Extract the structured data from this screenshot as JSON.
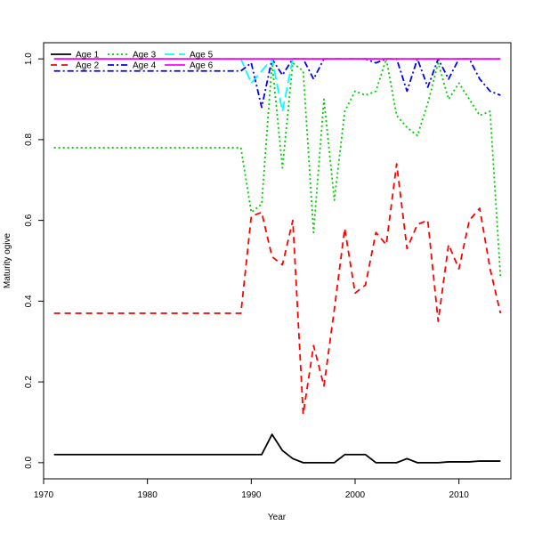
{
  "chart_data": {
    "type": "line",
    "xlabel": "Year",
    "ylabel": "Maturity ogive",
    "xlim": [
      1970,
      2015
    ],
    "ylim": [
      -0.04,
      1.04
    ],
    "x_ticks": [
      1970,
      1980,
      1990,
      2000,
      2010
    ],
    "y_ticks": [
      0.0,
      0.2,
      0.4,
      0.6,
      0.8,
      1.0
    ],
    "x_tick_labels": [
      "1970",
      "1980",
      "1990",
      "2000",
      "2010"
    ],
    "y_tick_labels": [
      "0.0",
      "0.2",
      "0.4",
      "0.6",
      "0.8",
      "1.0"
    ],
    "grid": false,
    "legend_position": "top-left",
    "x": [
      1971,
      1972,
      1973,
      1974,
      1975,
      1976,
      1977,
      1978,
      1979,
      1980,
      1981,
      1982,
      1983,
      1984,
      1985,
      1986,
      1987,
      1988,
      1989,
      1990,
      1991,
      1992,
      1993,
      1994,
      1995,
      1996,
      1997,
      1998,
      1999,
      2000,
      2001,
      2002,
      2003,
      2004,
      2005,
      2006,
      2007,
      2008,
      2009,
      2010,
      2011,
      2012,
      2013,
      2014
    ],
    "series": [
      {
        "name": "Age 1",
        "color": "#000000",
        "dash": "solid",
        "values": [
          0.02,
          0.02,
          0.02,
          0.02,
          0.02,
          0.02,
          0.02,
          0.02,
          0.02,
          0.02,
          0.02,
          0.02,
          0.02,
          0.02,
          0.02,
          0.02,
          0.02,
          0.02,
          0.02,
          0.02,
          0.02,
          0.07,
          0.03,
          0.01,
          0.0,
          0.0,
          0.0,
          0.0,
          0.02,
          0.02,
          0.02,
          0.0,
          0.0,
          0.0,
          0.01,
          0.0,
          0.0,
          0.0,
          0.002,
          0.002,
          0.002,
          0.004,
          0.004,
          0.004
        ]
      },
      {
        "name": "Age 2",
        "color": "#ff0000",
        "dash": "dashed",
        "values": [
          0.37,
          0.37,
          0.37,
          0.37,
          0.37,
          0.37,
          0.37,
          0.37,
          0.37,
          0.37,
          0.37,
          0.37,
          0.37,
          0.37,
          0.37,
          0.37,
          0.37,
          0.37,
          0.37,
          0.61,
          0.62,
          0.51,
          0.49,
          0.6,
          0.12,
          0.29,
          0.19,
          0.38,
          0.58,
          0.42,
          0.44,
          0.57,
          0.54,
          0.74,
          0.53,
          0.59,
          0.6,
          0.35,
          0.54,
          0.48,
          0.6,
          0.63,
          0.48,
          0.37
        ]
      },
      {
        "name": "Age 3",
        "color": "#00cd00",
        "dash": "dotted",
        "values": [
          0.78,
          0.78,
          0.78,
          0.78,
          0.78,
          0.78,
          0.78,
          0.78,
          0.78,
          0.78,
          0.78,
          0.78,
          0.78,
          0.78,
          0.78,
          0.78,
          0.78,
          0.78,
          0.78,
          0.62,
          0.64,
          0.99,
          0.73,
          0.99,
          0.97,
          0.57,
          0.9,
          0.65,
          0.87,
          0.92,
          0.91,
          0.92,
          1.0,
          0.86,
          0.83,
          0.81,
          0.89,
          0.99,
          0.9,
          0.94,
          0.9,
          0.86,
          0.87,
          0.46
        ]
      },
      {
        "name": "Age 4",
        "color": "#0000ff",
        "dash": "dashdot",
        "values": [
          0.97,
          0.97,
          0.97,
          0.97,
          0.97,
          0.97,
          0.97,
          0.97,
          0.97,
          0.97,
          0.97,
          0.97,
          0.97,
          0.97,
          0.97,
          0.97,
          0.97,
          0.97,
          0.97,
          0.99,
          0.88,
          1.0,
          0.96,
          1.0,
          1.0,
          0.95,
          1.0,
          1.0,
          1.0,
          1.0,
          1.0,
          0.99,
          1.0,
          1.0,
          0.92,
          1.0,
          0.93,
          1.0,
          0.95,
          1.0,
          1.0,
          0.95,
          0.92,
          0.91
        ]
      },
      {
        "name": "Age 5",
        "color": "#00ffff",
        "dash": "longdash",
        "values": [
          1.0,
          1.0,
          1.0,
          1.0,
          1.0,
          1.0,
          1.0,
          1.0,
          1.0,
          1.0,
          1.0,
          1.0,
          1.0,
          1.0,
          1.0,
          1.0,
          1.0,
          1.0,
          1.0,
          0.94,
          0.97,
          1.0,
          0.87,
          1.0,
          1.0,
          1.0,
          1.0,
          1.0,
          1.0,
          1.0,
          1.0,
          1.0,
          1.0,
          1.0,
          1.0,
          1.0,
          1.0,
          1.0,
          1.0,
          1.0,
          1.0,
          1.0,
          1.0,
          1.0
        ]
      },
      {
        "name": "Age 6",
        "color": "#ff00ff",
        "dash": "solid",
        "values": [
          1.0,
          1.0,
          1.0,
          1.0,
          1.0,
          1.0,
          1.0,
          1.0,
          1.0,
          1.0,
          1.0,
          1.0,
          1.0,
          1.0,
          1.0,
          1.0,
          1.0,
          1.0,
          1.0,
          1.0,
          1.0,
          1.0,
          1.0,
          1.0,
          1.0,
          1.0,
          1.0,
          1.0,
          1.0,
          1.0,
          1.0,
          1.0,
          1.0,
          1.0,
          1.0,
          1.0,
          1.0,
          1.0,
          1.0,
          1.0,
          1.0,
          1.0,
          1.0,
          1.0
        ]
      }
    ]
  }
}
